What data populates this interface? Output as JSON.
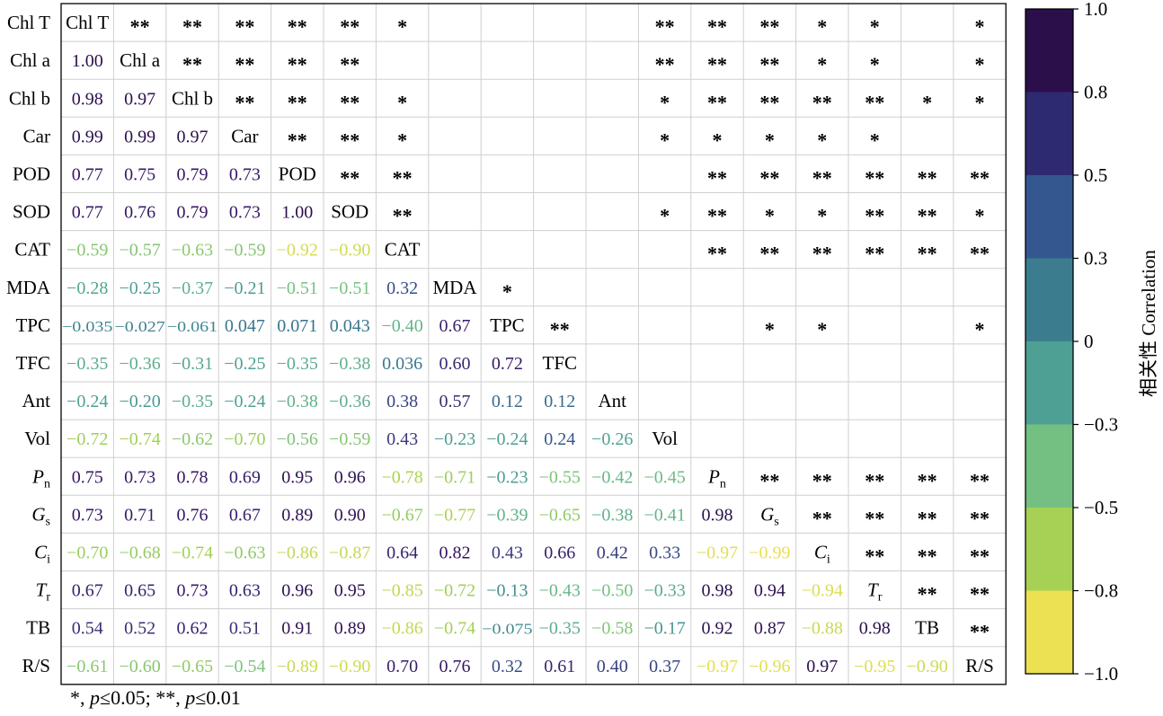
{
  "chart_data": {
    "type": "heatmap",
    "variables": [
      "Chl T",
      "Chl a",
      "Chl b",
      "Car",
      "POD",
      "SOD",
      "CAT",
      "MDA",
      "TPC",
      "TFC",
      "Ant",
      "Vol",
      "Pn",
      "Gs",
      "Ci",
      "Tr",
      "TB",
      "R/S"
    ],
    "labels": [
      {
        "text": "Chl T",
        "sub": ""
      },
      {
        "text": "Chl a",
        "sub": ""
      },
      {
        "text": "Chl b",
        "sub": ""
      },
      {
        "text": "Car",
        "sub": ""
      },
      {
        "text": "POD",
        "sub": ""
      },
      {
        "text": "SOD",
        "sub": ""
      },
      {
        "text": "CAT",
        "sub": ""
      },
      {
        "text": "MDA",
        "sub": ""
      },
      {
        "text": "TPC",
        "sub": ""
      },
      {
        "text": "TFC",
        "sub": ""
      },
      {
        "text": "Ant",
        "sub": ""
      },
      {
        "text": "Vol",
        "sub": ""
      },
      {
        "text": "P",
        "sub": "n"
      },
      {
        "text": "G",
        "sub": "s"
      },
      {
        "text": "C",
        "sub": "i"
      },
      {
        "text": "T",
        "sub": "r"
      },
      {
        "text": "TB",
        "sub": ""
      },
      {
        "text": "R/S",
        "sub": ""
      }
    ],
    "lower_triangle": [
      [],
      [
        "1.00"
      ],
      [
        "0.98",
        "0.97"
      ],
      [
        "0.99",
        "0.99",
        "0.97"
      ],
      [
        "0.77",
        "0.75",
        "0.79",
        "0.73"
      ],
      [
        "0.77",
        "0.76",
        "0.79",
        "0.73",
        "1.00"
      ],
      [
        "−0.59",
        "−0.57",
        "−0.63",
        "−0.59",
        "−0.92",
        "−0.90"
      ],
      [
        "−0.28",
        "−0.25",
        "−0.37",
        "−0.21",
        "−0.51",
        "−0.51",
        "0.32"
      ],
      [
        "−0.035",
        "−0.027",
        "−0.061",
        "0.047",
        "0.071",
        "0.043",
        "−0.40",
        "0.67"
      ],
      [
        "−0.35",
        "−0.36",
        "−0.31",
        "−0.25",
        "−0.35",
        "−0.38",
        "0.036",
        "0.60",
        "0.72"
      ],
      [
        "−0.24",
        "−0.20",
        "−0.35",
        "−0.24",
        "−0.38",
        "−0.36",
        "0.38",
        "0.57",
        "0.12",
        "0.12"
      ],
      [
        "−0.72",
        "−0.74",
        "−0.62",
        "−0.70",
        "−0.56",
        "−0.59",
        "0.43",
        "−0.23",
        "−0.24",
        "0.24",
        "−0.26"
      ],
      [
        "0.75",
        "0.73",
        "0.78",
        "0.69",
        "0.95",
        "0.96",
        "−0.78",
        "−0.71",
        "−0.23",
        "−0.55",
        "−0.42",
        "−0.45"
      ],
      [
        "0.73",
        "0.71",
        "0.76",
        "0.67",
        "0.89",
        "0.90",
        "−0.67",
        "−0.77",
        "−0.39",
        "−0.65",
        "−0.38",
        "−0.41",
        "0.98"
      ],
      [
        "−0.70",
        "−0.68",
        "−0.74",
        "−0.63",
        "−0.86",
        "−0.87",
        "0.64",
        "0.82",
        "0.43",
        "0.66",
        "0.42",
        "0.33",
        "−0.97",
        "−0.99"
      ],
      [
        "0.67",
        "0.65",
        "0.73",
        "0.63",
        "0.96",
        "0.95",
        "−0.85",
        "−0.72",
        "−0.13",
        "−0.43",
        "−0.50",
        "−0.33",
        "0.98",
        "0.94",
        "−0.94"
      ],
      [
        "0.54",
        "0.52",
        "0.62",
        "0.51",
        "0.91",
        "0.89",
        "−0.86",
        "−0.74",
        "−0.075",
        "−0.35",
        "−0.58",
        "−0.17",
        "0.92",
        "0.87",
        "−0.88",
        "0.98"
      ],
      [
        "−0.61",
        "−0.60",
        "−0.65",
        "−0.54",
        "−0.89",
        "−0.90",
        "0.70",
        "0.76",
        "0.32",
        "0.61",
        "0.40",
        "0.37",
        "−0.97",
        "−0.96",
        "0.97",
        "−0.95",
        "−0.90"
      ]
    ],
    "significance_upper": [
      {
        "row": 0,
        "col": 1,
        "mark": "**"
      },
      {
        "row": 0,
        "col": 2,
        "mark": "**"
      },
      {
        "row": 0,
        "col": 3,
        "mark": "**"
      },
      {
        "row": 0,
        "col": 4,
        "mark": "**"
      },
      {
        "row": 0,
        "col": 5,
        "mark": "**"
      },
      {
        "row": 0,
        "col": 6,
        "mark": "*"
      },
      {
        "row": 0,
        "col": 11,
        "mark": "**"
      },
      {
        "row": 0,
        "col": 12,
        "mark": "**"
      },
      {
        "row": 0,
        "col": 13,
        "mark": "**"
      },
      {
        "row": 0,
        "col": 14,
        "mark": "*"
      },
      {
        "row": 0,
        "col": 15,
        "mark": "*"
      },
      {
        "row": 0,
        "col": 17,
        "mark": "*"
      },
      {
        "row": 1,
        "col": 2,
        "mark": "**"
      },
      {
        "row": 1,
        "col": 3,
        "mark": "**"
      },
      {
        "row": 1,
        "col": 4,
        "mark": "**"
      },
      {
        "row": 1,
        "col": 5,
        "mark": "**"
      },
      {
        "row": 1,
        "col": 11,
        "mark": "**"
      },
      {
        "row": 1,
        "col": 12,
        "mark": "**"
      },
      {
        "row": 1,
        "col": 13,
        "mark": "**"
      },
      {
        "row": 1,
        "col": 14,
        "mark": "*"
      },
      {
        "row": 1,
        "col": 15,
        "mark": "*"
      },
      {
        "row": 1,
        "col": 17,
        "mark": "*"
      },
      {
        "row": 2,
        "col": 3,
        "mark": "**"
      },
      {
        "row": 2,
        "col": 4,
        "mark": "**"
      },
      {
        "row": 2,
        "col": 5,
        "mark": "**"
      },
      {
        "row": 2,
        "col": 6,
        "mark": "*"
      },
      {
        "row": 2,
        "col": 11,
        "mark": "*"
      },
      {
        "row": 2,
        "col": 12,
        "mark": "**"
      },
      {
        "row": 2,
        "col": 13,
        "mark": "**"
      },
      {
        "row": 2,
        "col": 14,
        "mark": "**"
      },
      {
        "row": 2,
        "col": 15,
        "mark": "**"
      },
      {
        "row": 2,
        "col": 16,
        "mark": "*"
      },
      {
        "row": 2,
        "col": 17,
        "mark": "*"
      },
      {
        "row": 3,
        "col": 4,
        "mark": "**"
      },
      {
        "row": 3,
        "col": 5,
        "mark": "**"
      },
      {
        "row": 3,
        "col": 6,
        "mark": "*"
      },
      {
        "row": 3,
        "col": 11,
        "mark": "*"
      },
      {
        "row": 3,
        "col": 12,
        "mark": "*"
      },
      {
        "row": 3,
        "col": 13,
        "mark": "*"
      },
      {
        "row": 3,
        "col": 14,
        "mark": "*"
      },
      {
        "row": 3,
        "col": 15,
        "mark": "*"
      },
      {
        "row": 4,
        "col": 5,
        "mark": "**"
      },
      {
        "row": 4,
        "col": 6,
        "mark": "**"
      },
      {
        "row": 4,
        "col": 12,
        "mark": "**"
      },
      {
        "row": 4,
        "col": 13,
        "mark": "**"
      },
      {
        "row": 4,
        "col": 14,
        "mark": "**"
      },
      {
        "row": 4,
        "col": 15,
        "mark": "**"
      },
      {
        "row": 4,
        "col": 16,
        "mark": "**"
      },
      {
        "row": 4,
        "col": 17,
        "mark": "**"
      },
      {
        "row": 5,
        "col": 6,
        "mark": "**"
      },
      {
        "row": 5,
        "col": 11,
        "mark": "*"
      },
      {
        "row": 5,
        "col": 12,
        "mark": "**"
      },
      {
        "row": 5,
        "col": 13,
        "mark": "*"
      },
      {
        "row": 5,
        "col": 14,
        "mark": "*"
      },
      {
        "row": 5,
        "col": 15,
        "mark": "**"
      },
      {
        "row": 5,
        "col": 16,
        "mark": "**"
      },
      {
        "row": 5,
        "col": 17,
        "mark": "*"
      },
      {
        "row": 6,
        "col": 12,
        "mark": "**"
      },
      {
        "row": 6,
        "col": 13,
        "mark": "**"
      },
      {
        "row": 6,
        "col": 14,
        "mark": "**"
      },
      {
        "row": 6,
        "col": 15,
        "mark": "**"
      },
      {
        "row": 6,
        "col": 16,
        "mark": "**"
      },
      {
        "row": 6,
        "col": 17,
        "mark": "**"
      },
      {
        "row": 7,
        "col": 8,
        "mark": "*"
      },
      {
        "row": 8,
        "col": 9,
        "mark": "**"
      },
      {
        "row": 8,
        "col": 13,
        "mark": "*"
      },
      {
        "row": 8,
        "col": 14,
        "mark": "*"
      },
      {
        "row": 8,
        "col": 17,
        "mark": "*"
      },
      {
        "row": 12,
        "col": 13,
        "mark": "**"
      },
      {
        "row": 12,
        "col": 14,
        "mark": "**"
      },
      {
        "row": 12,
        "col": 15,
        "mark": "**"
      },
      {
        "row": 12,
        "col": 16,
        "mark": "**"
      },
      {
        "row": 12,
        "col": 17,
        "mark": "**"
      },
      {
        "row": 13,
        "col": 14,
        "mark": "**"
      },
      {
        "row": 13,
        "col": 15,
        "mark": "**"
      },
      {
        "row": 13,
        "col": 16,
        "mark": "**"
      },
      {
        "row": 13,
        "col": 17,
        "mark": "**"
      },
      {
        "row": 14,
        "col": 15,
        "mark": "**"
      },
      {
        "row": 14,
        "col": 16,
        "mark": "**"
      },
      {
        "row": 14,
        "col": 17,
        "mark": "**"
      },
      {
        "row": 15,
        "col": 16,
        "mark": "**"
      },
      {
        "row": 15,
        "col": 17,
        "mark": "**"
      },
      {
        "row": 16,
        "col": 17,
        "mark": "**"
      }
    ],
    "colorbar": {
      "label": "相关性 Correlation",
      "ticks": [
        "1.0",
        "0.8",
        "0.5",
        "0.3",
        "0",
        "−0.3",
        "−0.5",
        "−0.8",
        "−1.0"
      ],
      "bins_top_to_bottom": [
        "#2b0f4b",
        "#2e2a71",
        "#34578f",
        "#3b7d8e",
        "#4fa094",
        "#74c083",
        "#a6d154",
        "#ece053"
      ],
      "range": [
        -1.0,
        1.0
      ]
    },
    "footnote": {
      "sig1_mark": "*",
      "sig1_p": "p",
      "sig1_text": "≤0.05;",
      "sig2_mark": "**",
      "sig2_p": "p",
      "sig2_text": "≤0.01"
    }
  }
}
